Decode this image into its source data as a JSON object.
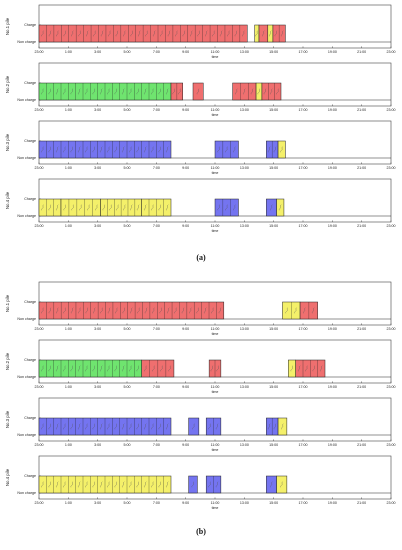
{
  "colors": {
    "red": "#ef6f6f",
    "green": "#6fe46f",
    "blue": "#7474f0",
    "yellow": "#f4f06a"
  },
  "chart_data": [
    {
      "panel": "(a)",
      "type": "gantt-step",
      "xlabel": "time",
      "y_states": [
        "Charge",
        "Non charge"
      ],
      "x_ticks": [
        "23:00",
        "1:00",
        "3:00",
        "5:00",
        "7:00",
        "9:00",
        "11:00",
        "13:00",
        "15:00",
        "17:00",
        "19:00",
        "21:00",
        "23:00"
      ],
      "xlim_hours": [
        23,
        47
      ],
      "piles": [
        {
          "label": "No.1 pile",
          "segments": [
            {
              "start": 23,
              "end": 37.2,
              "color": "red"
            },
            {
              "start": 37.7,
              "end": 38,
              "color": "yellow"
            },
            {
              "start": 38,
              "end": 38.6,
              "color": "red"
            },
            {
              "start": 38.6,
              "end": 38.95,
              "color": "yellow"
            },
            {
              "start": 38.95,
              "end": 39.8,
              "color": "red"
            }
          ]
        },
        {
          "label": "No.2 pile",
          "segments": [
            {
              "start": 23,
              "end": 32,
              "color": "green"
            },
            {
              "start": 32,
              "end": 32.8,
              "color": "red"
            },
            {
              "start": 33.5,
              "end": 34.2,
              "color": "red"
            },
            {
              "start": 36.2,
              "end": 37.8,
              "color": "red"
            },
            {
              "start": 37.8,
              "end": 38.2,
              "color": "yellow"
            },
            {
              "start": 38.2,
              "end": 39.5,
              "color": "red"
            }
          ]
        },
        {
          "label": "No.3 pile",
          "segments": [
            {
              "start": 23,
              "end": 32,
              "color": "blue"
            },
            {
              "start": 35,
              "end": 36.6,
              "color": "blue"
            },
            {
              "start": 38.5,
              "end": 39.3,
              "color": "blue"
            },
            {
              "start": 39.3,
              "end": 39.8,
              "color": "yellow"
            }
          ]
        },
        {
          "label": "No.4 pile",
          "segments": [
            {
              "start": 23,
              "end": 24.5,
              "color": "yellow"
            },
            {
              "start": 24.5,
              "end": 27.2,
              "color": "yellow"
            },
            {
              "start": 27.2,
              "end": 30,
              "color": "yellow"
            },
            {
              "start": 30,
              "end": 32,
              "color": "yellow"
            },
            {
              "start": 35,
              "end": 36.6,
              "color": "blue"
            },
            {
              "start": 38.5,
              "end": 39.2,
              "color": "blue"
            },
            {
              "start": 39.2,
              "end": 39.7,
              "color": "yellow"
            }
          ]
        }
      ]
    },
    {
      "panel": "(b)",
      "type": "gantt-step",
      "xlabel": "time",
      "y_states": [
        "Charge",
        "Non charge"
      ],
      "x_ticks": [
        "23:00",
        "1:00",
        "3:00",
        "5:00",
        "7:00",
        "9:00",
        "11:00",
        "13:00",
        "15:00",
        "17:00",
        "19:00",
        "21:00",
        "23:00"
      ],
      "xlim_hours": [
        23,
        47
      ],
      "piles": [
        {
          "label": "No.1 pile",
          "segments": [
            {
              "start": 23,
              "end": 35.6,
              "color": "red"
            },
            {
              "start": 39.6,
              "end": 40.8,
              "color": "yellow"
            },
            {
              "start": 40.8,
              "end": 42,
              "color": "red"
            }
          ]
        },
        {
          "label": "No.2 pile",
          "segments": [
            {
              "start": 23,
              "end": 30,
              "color": "green"
            },
            {
              "start": 30,
              "end": 32.2,
              "color": "red"
            },
            {
              "start": 34.6,
              "end": 35.4,
              "color": "red"
            },
            {
              "start": 40,
              "end": 40.5,
              "color": "yellow"
            },
            {
              "start": 40.5,
              "end": 42.5,
              "color": "red"
            }
          ]
        },
        {
          "label": "No.3 pile",
          "segments": [
            {
              "start": 23,
              "end": 32,
              "color": "blue"
            },
            {
              "start": 33.2,
              "end": 33.9,
              "color": "blue"
            },
            {
              "start": 34.4,
              "end": 35.4,
              "color": "blue"
            },
            {
              "start": 38.5,
              "end": 39.3,
              "color": "blue"
            },
            {
              "start": 39.3,
              "end": 39.9,
              "color": "yellow"
            }
          ]
        },
        {
          "label": "No.4 pile",
          "segments": [
            {
              "start": 23,
              "end": 32,
              "color": "yellow"
            },
            {
              "start": 33.2,
              "end": 33.8,
              "color": "blue"
            },
            {
              "start": 34.4,
              "end": 35.4,
              "color": "blue"
            },
            {
              "start": 38.5,
              "end": 39.2,
              "color": "blue"
            },
            {
              "start": 39.2,
              "end": 39.9,
              "color": "yellow"
            }
          ]
        }
      ]
    }
  ]
}
